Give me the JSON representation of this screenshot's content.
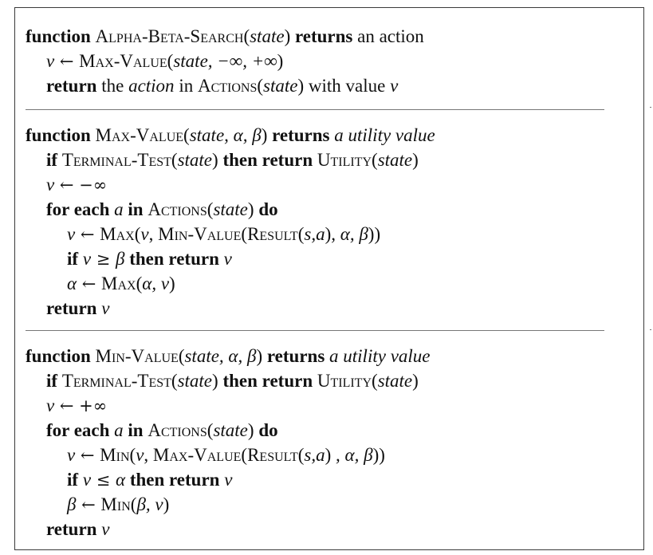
{
  "alpha_beta_search": {
    "header": {
      "kw_function": "function",
      "name": "Alpha-Beta-Search",
      "arg_open": "(",
      "arg": "state",
      "arg_close": ")",
      "kw_returns": "returns",
      "result": "an action"
    },
    "line2": {
      "var": "v",
      "arrow": " ← ",
      "call": "Max-Value",
      "args_open": "(",
      "args": "state, −∞, +∞",
      "args_close": ")"
    },
    "line3": {
      "kw_return": "return",
      "t1": " the ",
      "action": "action",
      "t2": " in ",
      "actions": "Actions",
      "p_open": "(",
      "state": "state",
      "p_close": ")",
      "t3": " with value ",
      "v": "v"
    }
  },
  "max_value": {
    "header": {
      "kw_function": "function",
      "name": "Max-Value",
      "arg_open": "(",
      "args": "state, α, β",
      "arg_close": ")",
      "kw_returns": "returns",
      "result": "a utility value"
    },
    "terminal": {
      "kw_if": "if",
      "test": "Terminal-Test",
      "p1": "(",
      "state1": "state",
      "p2": ")",
      "kw_then": "then return",
      "utility": "Utility",
      "p3": "(",
      "state2": "state",
      "p4": ")"
    },
    "init": {
      "var": "v",
      "arrow": " ← ",
      "value": "−∞"
    },
    "loop": {
      "kw_for": "for each",
      "a": "a",
      "kw_in": "in",
      "actions": "Actions",
      "p1": "(",
      "state": "state",
      "p2": ")",
      "kw_do": "do"
    },
    "update": {
      "var": "v",
      "arrow": " ← ",
      "max": "Max",
      "p1": "(",
      "v": "v",
      "comma": ", ",
      "min_value": "Min-Value",
      "p2": "(",
      "result": "Result",
      "p3": "(",
      "sa": "s,a",
      "p4": ")",
      "rest": ", α, β",
      "p5": "))"
    },
    "prune": {
      "kw_if": "if",
      "v": "v",
      "op": " ≥ ",
      "bound": "β",
      "kw_then": "then return",
      "rv": "v"
    },
    "alpha": {
      "var": "α",
      "arrow": " ← ",
      "max": "Max",
      "p1": "(",
      "args": "α, v",
      "p2": ")"
    },
    "ret": {
      "kw_return": "return",
      "v": "v"
    }
  },
  "min_value": {
    "header": {
      "kw_function": "function",
      "name": "Min-Value",
      "arg_open": "(",
      "args": "state, α, β",
      "arg_close": ")",
      "kw_returns": "returns",
      "result": "a utility value"
    },
    "terminal": {
      "kw_if": "if",
      "test": "Terminal-Test",
      "p1": "(",
      "state1": "state",
      "p2": ")",
      "kw_then": "then return",
      "utility": "Utility",
      "p3": "(",
      "state2": "state",
      "p4": ")"
    },
    "init": {
      "var": "v",
      "arrow": " ← ",
      "value": "+∞"
    },
    "loop": {
      "kw_for": "for each",
      "a": "a",
      "kw_in": "in",
      "actions": "Actions",
      "p1": "(",
      "state": "state",
      "p2": ")",
      "kw_do": "do"
    },
    "update": {
      "var": "v",
      "arrow": " ← ",
      "min": "Min",
      "p1": "(",
      "v": "v",
      "comma": ", ",
      "max_value": "Max-Value",
      "p2": "(",
      "result": "Result",
      "p3": "(",
      "sa": "s,a",
      "p4": ") ",
      "rest": ", α, β",
      "p5": "))"
    },
    "prune": {
      "kw_if": "if",
      "v": "v",
      "op": " ≤ ",
      "bound": "α",
      "kw_then": "then return",
      "rv": "v"
    },
    "beta": {
      "var": "β",
      "arrow": " ← ",
      "min": "Min",
      "p1": "(",
      "args": "β, v",
      "p2": ")"
    },
    "ret": {
      "kw_return": "return",
      "v": "v"
    }
  }
}
